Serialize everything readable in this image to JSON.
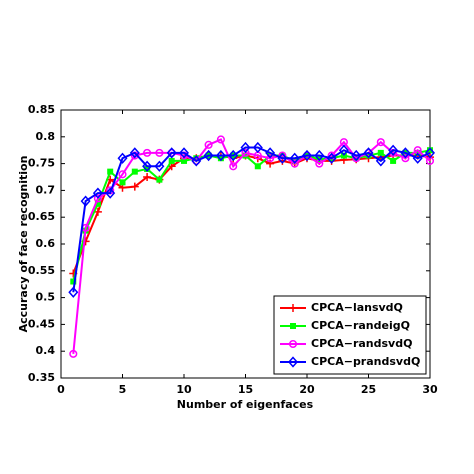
{
  "chart_data": {
    "type": "line",
    "xlabel": "Number of eigenfaces",
    "ylabel": "Accuracy of face recognition",
    "x": [
      1,
      2,
      3,
      4,
      5,
      6,
      7,
      8,
      9,
      10,
      11,
      12,
      13,
      14,
      15,
      16,
      17,
      18,
      19,
      20,
      21,
      22,
      23,
      24,
      25,
      26,
      27,
      28,
      29,
      30
    ],
    "series": [
      {
        "name": "CPCA−lansvdQ",
        "color": "#ff0000",
        "marker": "plus",
        "values": [
          0.545,
          0.605,
          0.66,
          0.72,
          0.705,
          0.707,
          0.725,
          0.72,
          0.745,
          0.76,
          0.76,
          0.765,
          0.765,
          0.76,
          0.765,
          0.76,
          0.75,
          0.755,
          0.75,
          0.76,
          0.755,
          0.755,
          0.757,
          0.758,
          0.76,
          0.762,
          0.765,
          0.765,
          0.765,
          0.762
        ]
      },
      {
        "name": "CPCA−randeigQ",
        "color": "#00ff00",
        "marker": "square",
        "values": [
          0.53,
          0.625,
          0.675,
          0.735,
          0.715,
          0.735,
          0.74,
          0.72,
          0.755,
          0.755,
          0.76,
          0.765,
          0.76,
          0.765,
          0.765,
          0.745,
          0.765,
          0.765,
          0.755,
          0.765,
          0.758,
          0.76,
          0.765,
          0.76,
          0.765,
          0.77,
          0.755,
          0.77,
          0.77,
          0.775
        ]
      },
      {
        "name": "CPCA−randsvdQ",
        "color": "#ff00ff",
        "marker": "circle",
        "values": [
          0.395,
          0.63,
          0.685,
          0.7,
          0.73,
          0.765,
          0.77,
          0.77,
          0.77,
          0.765,
          0.755,
          0.785,
          0.795,
          0.745,
          0.77,
          0.765,
          0.76,
          0.765,
          0.75,
          0.765,
          0.75,
          0.765,
          0.79,
          0.76,
          0.77,
          0.79,
          0.77,
          0.76,
          0.775,
          0.755
        ]
      },
      {
        "name": "CPCA−prandsvdQ",
        "color": "#0000ff",
        "marker": "diamond",
        "values": [
          0.51,
          0.68,
          0.695,
          0.695,
          0.76,
          0.77,
          0.745,
          0.745,
          0.77,
          0.77,
          0.755,
          0.765,
          0.765,
          0.765,
          0.78,
          0.78,
          0.77,
          0.76,
          0.76,
          0.765,
          0.765,
          0.76,
          0.775,
          0.765,
          0.77,
          0.755,
          0.775,
          0.77,
          0.76,
          0.77
        ]
      }
    ],
    "xlim": [
      0,
      30
    ],
    "xticks": [
      0,
      5,
      10,
      15,
      20,
      25,
      30
    ],
    "ylim": [
      0.35,
      0.85
    ],
    "yticks": [
      0.35,
      0.4,
      0.45,
      0.5,
      0.55,
      0.6,
      0.65,
      0.7,
      0.75,
      0.8,
      0.85
    ],
    "legend": "lower right",
    "grid": false
  }
}
